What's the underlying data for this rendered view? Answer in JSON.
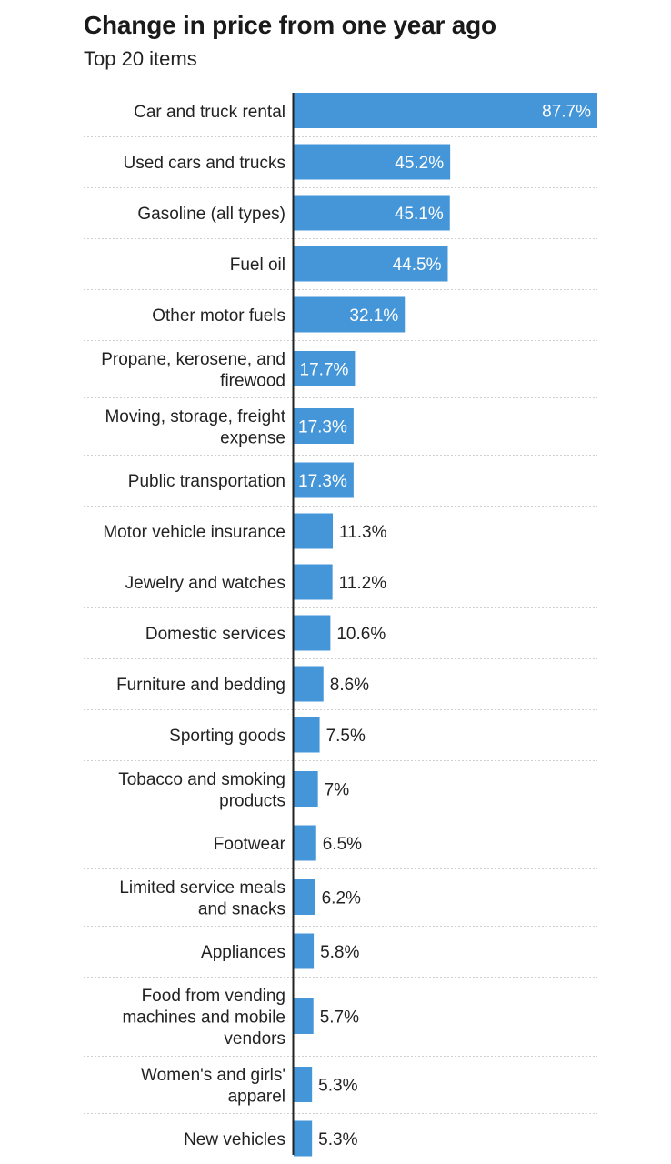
{
  "chart_data": {
    "type": "bar",
    "orientation": "horizontal",
    "title": "Change in price from one year ago",
    "subtitle": "Top 20 items",
    "categories": [
      [
        "Car and truck rental"
      ],
      [
        "Used cars and trucks"
      ],
      [
        "Gasoline (all types)"
      ],
      [
        "Fuel oil"
      ],
      [
        "Other motor fuels"
      ],
      [
        "Propane, kerosene, and",
        "firewood"
      ],
      [
        "Moving, storage, freight",
        "expense"
      ],
      [
        "Public transportation"
      ],
      [
        "Motor vehicle insurance"
      ],
      [
        "Jewelry and watches"
      ],
      [
        "Domestic services"
      ],
      [
        "Furniture and bedding"
      ],
      [
        "Sporting goods"
      ],
      [
        "Tobacco and smoking",
        "products"
      ],
      [
        "Footwear"
      ],
      [
        "Limited service meals",
        "and snacks"
      ],
      [
        "Appliances"
      ],
      [
        "Food from vending",
        "machines and mobile",
        "vendors"
      ],
      [
        "Women's and girls'",
        "apparel"
      ],
      [
        "New vehicles"
      ]
    ],
    "values": [
      87.7,
      45.2,
      45.1,
      44.5,
      32.1,
      17.7,
      17.3,
      17.3,
      11.3,
      11.2,
      10.6,
      8.6,
      7.5,
      7,
      6.5,
      6.2,
      5.8,
      5.7,
      5.3,
      5.3
    ],
    "value_labels": [
      "87.7%",
      "45.2%",
      "45.1%",
      "44.5%",
      "32.1%",
      "17.7%",
      "17.3%",
      "17.3%",
      "11.3%",
      "11.2%",
      "10.6%",
      "8.6%",
      "7.5%",
      "7%",
      "6.5%",
      "6.2%",
      "5.8%",
      "5.7%",
      "5.3%",
      "5.3%"
    ],
    "xlim": [
      0,
      87.7
    ],
    "unit": "%",
    "grid": false,
    "colors": {
      "bar": "#4596d8",
      "inside_label": "#ffffff",
      "outside_label": "#222222",
      "divider": "#cfcfcf",
      "axis": "#222222"
    }
  }
}
